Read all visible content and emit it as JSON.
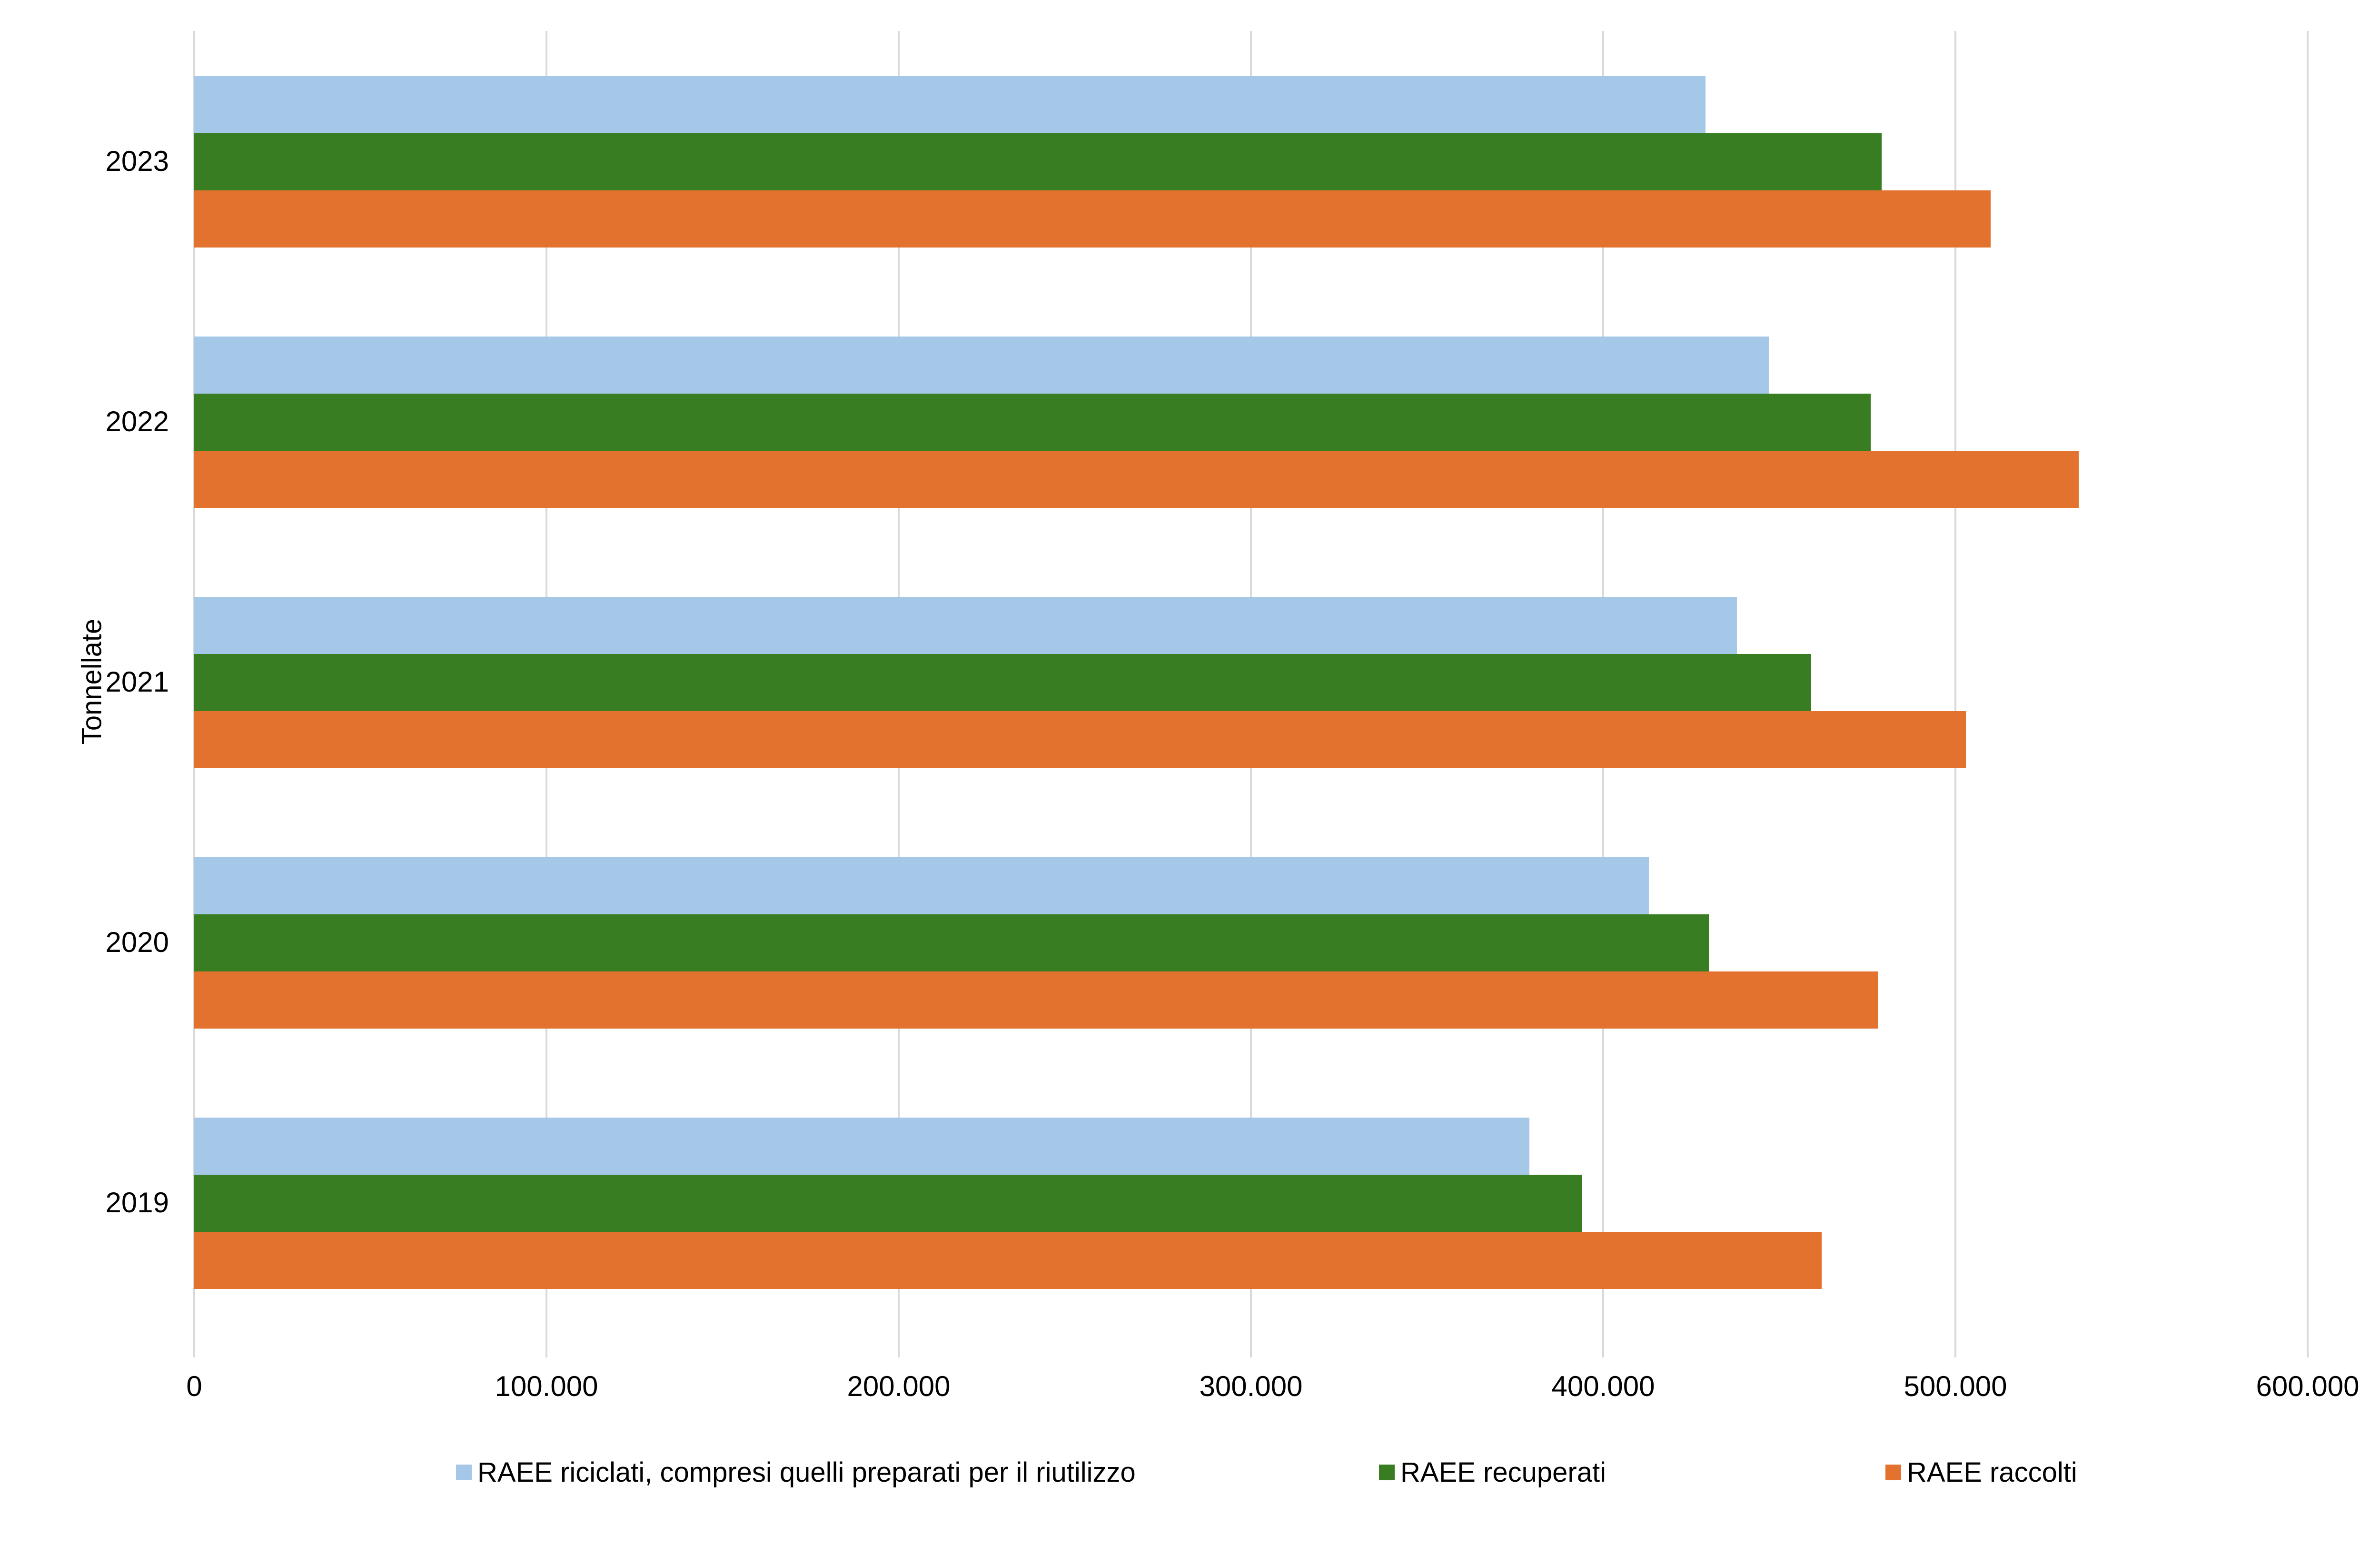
{
  "chart_data": {
    "type": "bar",
    "orientation": "horizontal",
    "title": "",
    "xlabel": "",
    "ylabel": "Tonnellate",
    "categories": [
      "2023",
      "2022",
      "2021",
      "2020",
      "2019"
    ],
    "series": [
      {
        "name": "RAEE riciclati, compresi quelli preparati per il riutilizzo",
        "color": "#A5C8E9",
        "values": [
          429000,
          447000,
          438000,
          413000,
          379000
        ]
      },
      {
        "name": "RAEE recuperati",
        "color": "#387D22",
        "values": [
          479000,
          476000,
          459000,
          430000,
          394000
        ]
      },
      {
        "name": "RAEE raccolti",
        "color": "#E2722E",
        "values": [
          510000,
          535000,
          503000,
          478000,
          462000
        ]
      }
    ],
    "x_axis": {
      "min": 0,
      "max": 600000,
      "tick_interval": 100000,
      "tick_labels": [
        "0",
        "100.000",
        "200.000",
        "300.000",
        "400.000",
        "500.000",
        "600.000"
      ]
    },
    "grid": "vertical",
    "grid_color": "#D9D9D9",
    "legend_position": "bottom"
  }
}
